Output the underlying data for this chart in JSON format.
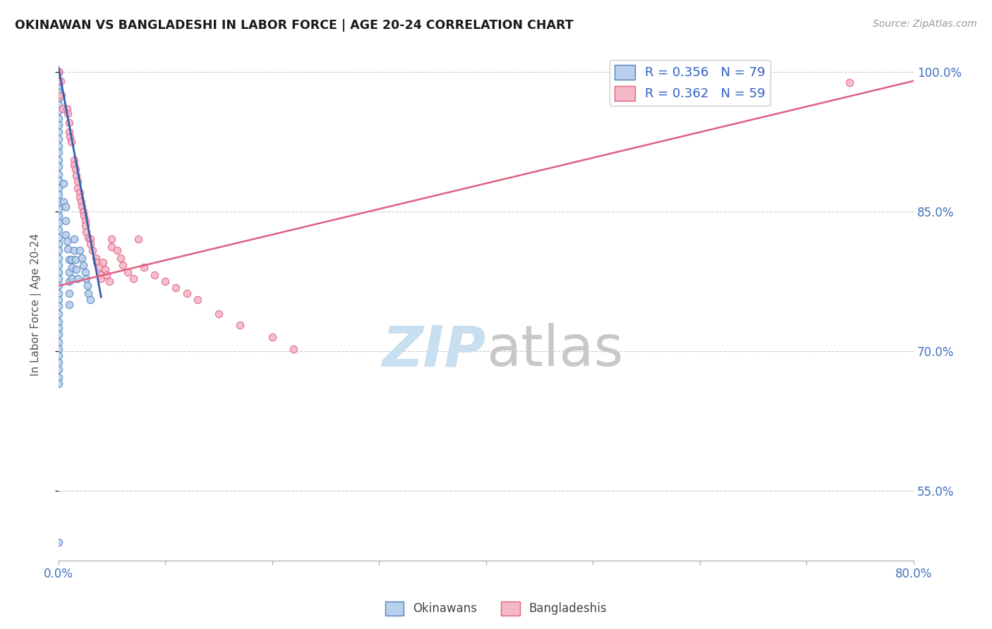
{
  "title": "OKINAWAN VS BANGLADESHI IN LABOR FORCE | AGE 20-24 CORRELATION CHART",
  "source": "Source: ZipAtlas.com",
  "ylabel": "In Labor Force | Age 20-24",
  "legend_okinawan": "R = 0.356   N = 79",
  "legend_bangladeshi": "R = 0.362   N = 59",
  "legend_label1": "Okinawans",
  "legend_label2": "Bangladeshis",
  "color_okinawan_fill": "#b8d0ea",
  "color_okinawan_edge": "#5580c0",
  "color_bangladeshi_fill": "#f5b8c8",
  "color_bangladeshi_edge": "#e06080",
  "color_trendline_okinawan": "#3060b0",
  "color_trendline_bangladeshi": "#e06080",
  "color_title": "#1a1a1a",
  "color_legend_text": "#3060c0",
  "color_source": "#999999",
  "color_axis_text": "#4070c0",
  "color_grid": "#cccccc",
  "watermark_zip_color": "#c8dff0",
  "watermark_atlas_color": "#c8c8c8",
  "xmin": 0.0,
  "xmax": 0.8,
  "ymin": 0.475,
  "ymax": 1.025,
  "ytick_vals": [
    0.55,
    0.7,
    0.85,
    1.0
  ],
  "ytick_labels": [
    "55.0%",
    "70.0%",
    "85.0%",
    "100.0%"
  ],
  "okinawan_x": [
    0.0,
    0.0,
    0.0,
    0.0,
    0.0,
    0.0,
    0.0,
    0.0,
    0.0,
    0.0,
    0.0,
    0.0,
    0.0,
    0.0,
    0.0,
    0.0,
    0.0,
    0.0,
    0.0,
    0.0,
    0.0,
    0.0,
    0.0,
    0.0,
    0.0,
    0.0,
    0.0,
    0.0,
    0.0,
    0.0,
    0.0,
    0.0,
    0.0,
    0.0,
    0.0,
    0.0,
    0.0,
    0.0,
    0.0,
    0.0,
    0.0,
    0.0,
    0.0,
    0.0,
    0.0,
    0.0,
    0.0,
    0.0,
    0.0,
    0.0,
    0.005,
    0.005,
    0.007,
    0.007,
    0.007,
    0.008,
    0.009,
    0.01,
    0.01,
    0.01,
    0.01,
    0.01,
    0.012,
    0.013,
    0.013,
    0.015,
    0.015,
    0.016,
    0.017,
    0.018,
    0.02,
    0.022,
    0.023,
    0.025,
    0.026,
    0.027,
    0.028,
    0.03,
    0.0
  ],
  "okinawan_y": [
    1.0,
    1.0,
    1.0,
    1.0,
    1.0,
    0.99,
    0.985,
    0.978,
    0.972,
    0.965,
    0.958,
    0.95,
    0.943,
    0.935,
    0.928,
    0.92,
    0.913,
    0.905,
    0.898,
    0.89,
    0.883,
    0.875,
    0.868,
    0.86,
    0.852,
    0.845,
    0.838,
    0.83,
    0.822,
    0.815,
    0.808,
    0.8,
    0.792,
    0.785,
    0.778,
    0.77,
    0.762,
    0.755,
    0.748,
    0.74,
    0.732,
    0.725,
    0.718,
    0.71,
    0.702,
    0.695,
    0.688,
    0.68,
    0.672,
    0.665,
    0.88,
    0.86,
    0.855,
    0.84,
    0.825,
    0.818,
    0.81,
    0.798,
    0.785,
    0.775,
    0.762,
    0.75,
    0.798,
    0.79,
    0.778,
    0.82,
    0.808,
    0.798,
    0.788,
    0.778,
    0.808,
    0.8,
    0.792,
    0.785,
    0.778,
    0.77,
    0.762,
    0.755,
    0.495
  ],
  "bangladeshi_x": [
    0.0,
    0.0,
    0.0,
    0.002,
    0.003,
    0.004,
    0.008,
    0.009,
    0.01,
    0.01,
    0.011,
    0.012,
    0.015,
    0.015,
    0.016,
    0.017,
    0.018,
    0.018,
    0.02,
    0.02,
    0.021,
    0.022,
    0.023,
    0.024,
    0.025,
    0.025,
    0.026,
    0.028,
    0.03,
    0.03,
    0.032,
    0.035,
    0.036,
    0.038,
    0.04,
    0.04,
    0.042,
    0.044,
    0.045,
    0.048,
    0.05,
    0.05,
    0.055,
    0.058,
    0.06,
    0.065,
    0.07,
    0.075,
    0.08,
    0.09,
    0.1,
    0.11,
    0.12,
    0.13,
    0.15,
    0.17,
    0.2,
    0.22,
    0.74
  ],
  "bangladeshi_y": [
    1.0,
    1.0,
    0.99,
    0.99,
    0.975,
    0.96,
    0.96,
    0.955,
    0.945,
    0.935,
    0.93,
    0.925,
    0.905,
    0.9,
    0.895,
    0.888,
    0.882,
    0.875,
    0.87,
    0.865,
    0.86,
    0.855,
    0.85,
    0.845,
    0.84,
    0.835,
    0.828,
    0.822,
    0.82,
    0.815,
    0.808,
    0.8,
    0.795,
    0.79,
    0.782,
    0.778,
    0.795,
    0.788,
    0.782,
    0.775,
    0.82,
    0.812,
    0.808,
    0.8,
    0.792,
    0.785,
    0.778,
    0.82,
    0.79,
    0.782,
    0.775,
    0.768,
    0.762,
    0.755,
    0.74,
    0.728,
    0.715,
    0.702,
    0.988
  ],
  "ok_trendline_x": [
    0.0,
    0.04
  ],
  "ok_trendline_y": [
    1.005,
    0.758
  ],
  "bang_trendline_x": [
    0.0,
    0.8
  ],
  "bang_trendline_y": [
    0.77,
    0.99
  ]
}
